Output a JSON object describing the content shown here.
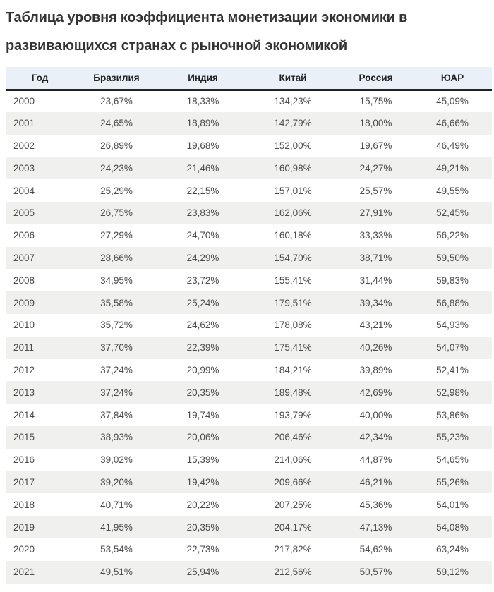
{
  "page": {
    "title": "Таблица уровня коэффициента монетизации экономики в развивающихся странах с рыночной экономикой"
  },
  "table": {
    "columns": [
      "Год",
      "Бразилия",
      "Индия",
      "Китай",
      "Россия",
      "ЮАР"
    ],
    "rows": [
      [
        "2000",
        "23,67%",
        "18,33%",
        "134,23%",
        "15,75%",
        "45,09%"
      ],
      [
        "2001",
        "24,65%",
        "18,89%",
        "142,79%",
        "18,00%",
        "46,66%"
      ],
      [
        "2002",
        "26,89%",
        "19,68%",
        "152,00%",
        "19,67%",
        "46,49%"
      ],
      [
        "2003",
        "24,23%",
        "21,46%",
        "160,98%",
        "24,27%",
        "49,21%"
      ],
      [
        "2004",
        "25,29%",
        "22,15%",
        "157,01%",
        "25,57%",
        "49,55%"
      ],
      [
        "2005",
        "26,75%",
        "23,83%",
        "162,06%",
        "27,91%",
        "52,45%"
      ],
      [
        "2006",
        "27,29%",
        "24,70%",
        "160,18%",
        "33,33%",
        "56,22%"
      ],
      [
        "2007",
        "28,66%",
        "24,29%",
        "154,70%",
        "38,71%",
        "59,50%"
      ],
      [
        "2008",
        "34,95%",
        "23,72%",
        "155,41%",
        "31,44%",
        "59,83%"
      ],
      [
        "2009",
        "35,58%",
        "25,24%",
        "179,51%",
        "39,34%",
        "56,88%"
      ],
      [
        "2010",
        "35,72%",
        "24,62%",
        "178,08%",
        "43,21%",
        "54,93%"
      ],
      [
        "2011",
        "37,70%",
        "22,39%",
        "175,41%",
        "40,26%",
        "54,07%"
      ],
      [
        "2012",
        "37,24%",
        "20,99%",
        "184,21%",
        "39,89%",
        "52,41%"
      ],
      [
        "2013",
        "37,24%",
        "20,35%",
        "189,48%",
        "42,69%",
        "52,98%"
      ],
      [
        "2014",
        "37,84%",
        "19,74%",
        "193,79%",
        "40,00%",
        "53,86%"
      ],
      [
        "2015",
        "38,93%",
        "20,06%",
        "206,46%",
        "42,34%",
        "55,23%"
      ],
      [
        "2016",
        "39,02%",
        "15,39%",
        "214,06%",
        "44,87%",
        "54,65%"
      ],
      [
        "2017",
        "39,20%",
        "19,42%",
        "209,66%",
        "46,21%",
        "55,26%"
      ],
      [
        "2018",
        "40,71%",
        "20,22%",
        "207,25%",
        "45,36%",
        "54,01%"
      ],
      [
        "2019",
        "41,95%",
        "20,35%",
        "204,17%",
        "47,13%",
        "54,08%"
      ],
      [
        "2020",
        "53,54%",
        "22,73%",
        "217,82%",
        "54,62%",
        "63,24%"
      ],
      [
        "2021",
        "49,51%",
        "25,94%",
        "212,56%",
        "50,57%",
        "59,12%"
      ]
    ]
  },
  "colors": {
    "header_bg": "#e9f0f7",
    "stripe_bg": "#f0f0ef",
    "header_border": "#222222",
    "title_text": "#333333",
    "cell_text": "#4b4b4b"
  }
}
